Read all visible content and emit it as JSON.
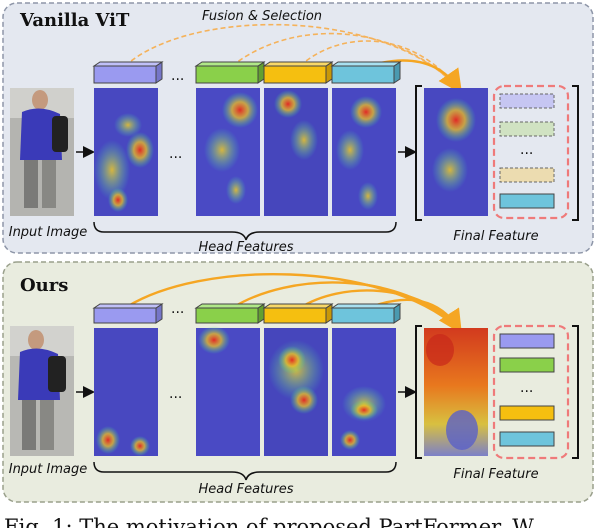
{
  "panels": [
    {
      "title": "Vanilla ViT",
      "top_label": "Fusion & Selection",
      "input_label": "Input Image",
      "head_label": "Head Features",
      "final_label": "Final Feature",
      "ellipsis": "...",
      "background": "#e4e8f0",
      "border": "#8e96a8"
    },
    {
      "title": "Ours",
      "input_label": "Input Image",
      "head_label": "Head Features",
      "final_label": "Final Feature",
      "ellipsis": "...",
      "background": "#e9ecdf",
      "border": "#9aa08c"
    }
  ],
  "caption": "Fig. 1: The motivation of proposed PartFormer. W",
  "colors": {
    "token_purple": "#9a9af0",
    "token_green": "#8ad04a",
    "token_orange": "#f5bf10",
    "token_cyan": "#6ec4dc",
    "arrow_orange": "#f5a623",
    "selection_box": "#ef7a7a",
    "person_jacket": "#3a3ab8"
  }
}
